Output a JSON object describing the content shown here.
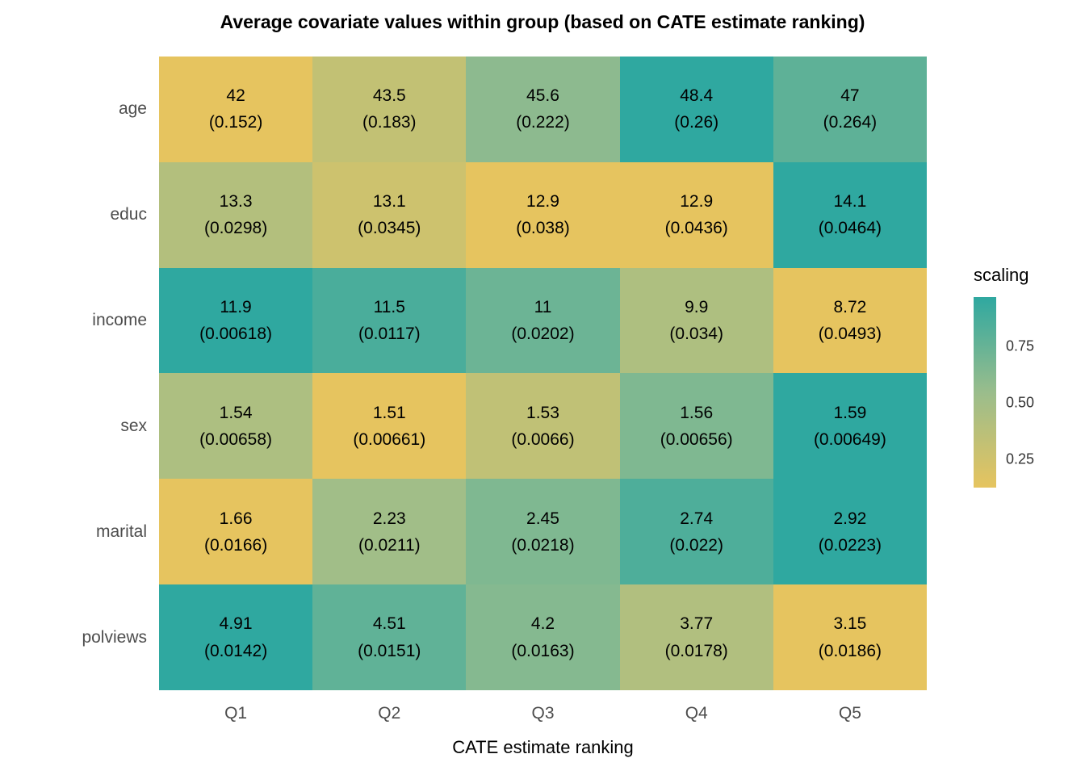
{
  "chart_data": {
    "type": "heatmap",
    "title": "Average covariate values within group (based on CATE estimate ranking)",
    "xlabel": "CATE estimate ranking",
    "ylabel": "",
    "columns": [
      "Q1",
      "Q2",
      "Q3",
      "Q4",
      "Q5"
    ],
    "rows": [
      {
        "name": "age",
        "cells": [
          {
            "value": "42",
            "se": "(0.152)",
            "scaling": 0.0,
            "fill": "#E6C45F"
          },
          {
            "value": "43.5",
            "se": "(0.183)",
            "scaling": 0.23,
            "fill": "#C2C174"
          },
          {
            "value": "45.6",
            "se": "(0.222)",
            "scaling": 0.56,
            "fill": "#8DBA8F"
          },
          {
            "value": "48.4",
            "se": "(0.26)",
            "scaling": 1.0,
            "fill": "#2FA8A0"
          },
          {
            "value": "47",
            "se": "(0.264)",
            "scaling": 0.78,
            "fill": "#5EB197"
          }
        ]
      },
      {
        "name": "educ",
        "cells": [
          {
            "value": "13.3",
            "se": "(0.0298)",
            "scaling": 0.33,
            "fill": "#B3BF7D"
          },
          {
            "value": "13.1",
            "se": "(0.0345)",
            "scaling": 0.17,
            "fill": "#CDC26E"
          },
          {
            "value": "12.9",
            "se": "(0.038)",
            "scaling": 0.0,
            "fill": "#E6C45F"
          },
          {
            "value": "12.9",
            "se": "(0.0436)",
            "scaling": 0.0,
            "fill": "#E6C45F"
          },
          {
            "value": "14.1",
            "se": "(0.0464)",
            "scaling": 1.0,
            "fill": "#2FA8A0"
          }
        ]
      },
      {
        "name": "income",
        "cells": [
          {
            "value": "11.9",
            "se": "(0.00618)",
            "scaling": 1.0,
            "fill": "#2FA8A0"
          },
          {
            "value": "11.5",
            "se": "(0.0117)",
            "scaling": 0.87,
            "fill": "#4AAD9B"
          },
          {
            "value": "11",
            "se": "(0.0202)",
            "scaling": 0.72,
            "fill": "#6CB495"
          },
          {
            "value": "9.9",
            "se": "(0.034)",
            "scaling": 0.37,
            "fill": "#AEBF80"
          },
          {
            "value": "8.72",
            "se": "(0.0493)",
            "scaling": 0.0,
            "fill": "#E6C45F"
          }
        ]
      },
      {
        "name": "sex",
        "cells": [
          {
            "value": "1.54",
            "se": "(0.00658)",
            "scaling": 0.38,
            "fill": "#ADBF81"
          },
          {
            "value": "1.51",
            "se": "(0.00661)",
            "scaling": 0.0,
            "fill": "#E6C45F"
          },
          {
            "value": "1.53",
            "se": "(0.0066)",
            "scaling": 0.25,
            "fill": "#C0C176"
          },
          {
            "value": "1.56",
            "se": "(0.00656)",
            "scaling": 0.63,
            "fill": "#7FB891"
          },
          {
            "value": "1.59",
            "se": "(0.00649)",
            "scaling": 1.0,
            "fill": "#2FA8A0"
          }
        ]
      },
      {
        "name": "marital",
        "cells": [
          {
            "value": "1.66",
            "se": "(0.0166)",
            "scaling": 0.0,
            "fill": "#E6C45F"
          },
          {
            "value": "2.23",
            "se": "(0.0211)",
            "scaling": 0.45,
            "fill": "#A1BE88"
          },
          {
            "value": "2.45",
            "se": "(0.0218)",
            "scaling": 0.63,
            "fill": "#7FB891"
          },
          {
            "value": "2.74",
            "se": "(0.022)",
            "scaling": 0.86,
            "fill": "#4EAE9A"
          },
          {
            "value": "2.92",
            "se": "(0.0223)",
            "scaling": 1.0,
            "fill": "#2FA8A0"
          }
        ]
      },
      {
        "name": "polviews",
        "cells": [
          {
            "value": "4.91",
            "se": "(0.0142)",
            "scaling": 1.0,
            "fill": "#2FA8A0"
          },
          {
            "value": "4.51",
            "se": "(0.0151)",
            "scaling": 0.77,
            "fill": "#60B297"
          },
          {
            "value": "4.2",
            "se": "(0.0163)",
            "scaling": 0.6,
            "fill": "#85B990"
          },
          {
            "value": "3.77",
            "se": "(0.0178)",
            "scaling": 0.35,
            "fill": "#B1BF7F"
          },
          {
            "value": "3.15",
            "se": "(0.0186)",
            "scaling": 0.0,
            "fill": "#E6C45F"
          }
        ]
      }
    ],
    "legend": {
      "title": "scaling",
      "position": "right",
      "ticks": [
        "0.75",
        "0.50",
        "0.25"
      ],
      "gradient": {
        "low": "#E6C45F",
        "mid": "#9ABD8C",
        "high": "#2FA8A0"
      }
    }
  }
}
